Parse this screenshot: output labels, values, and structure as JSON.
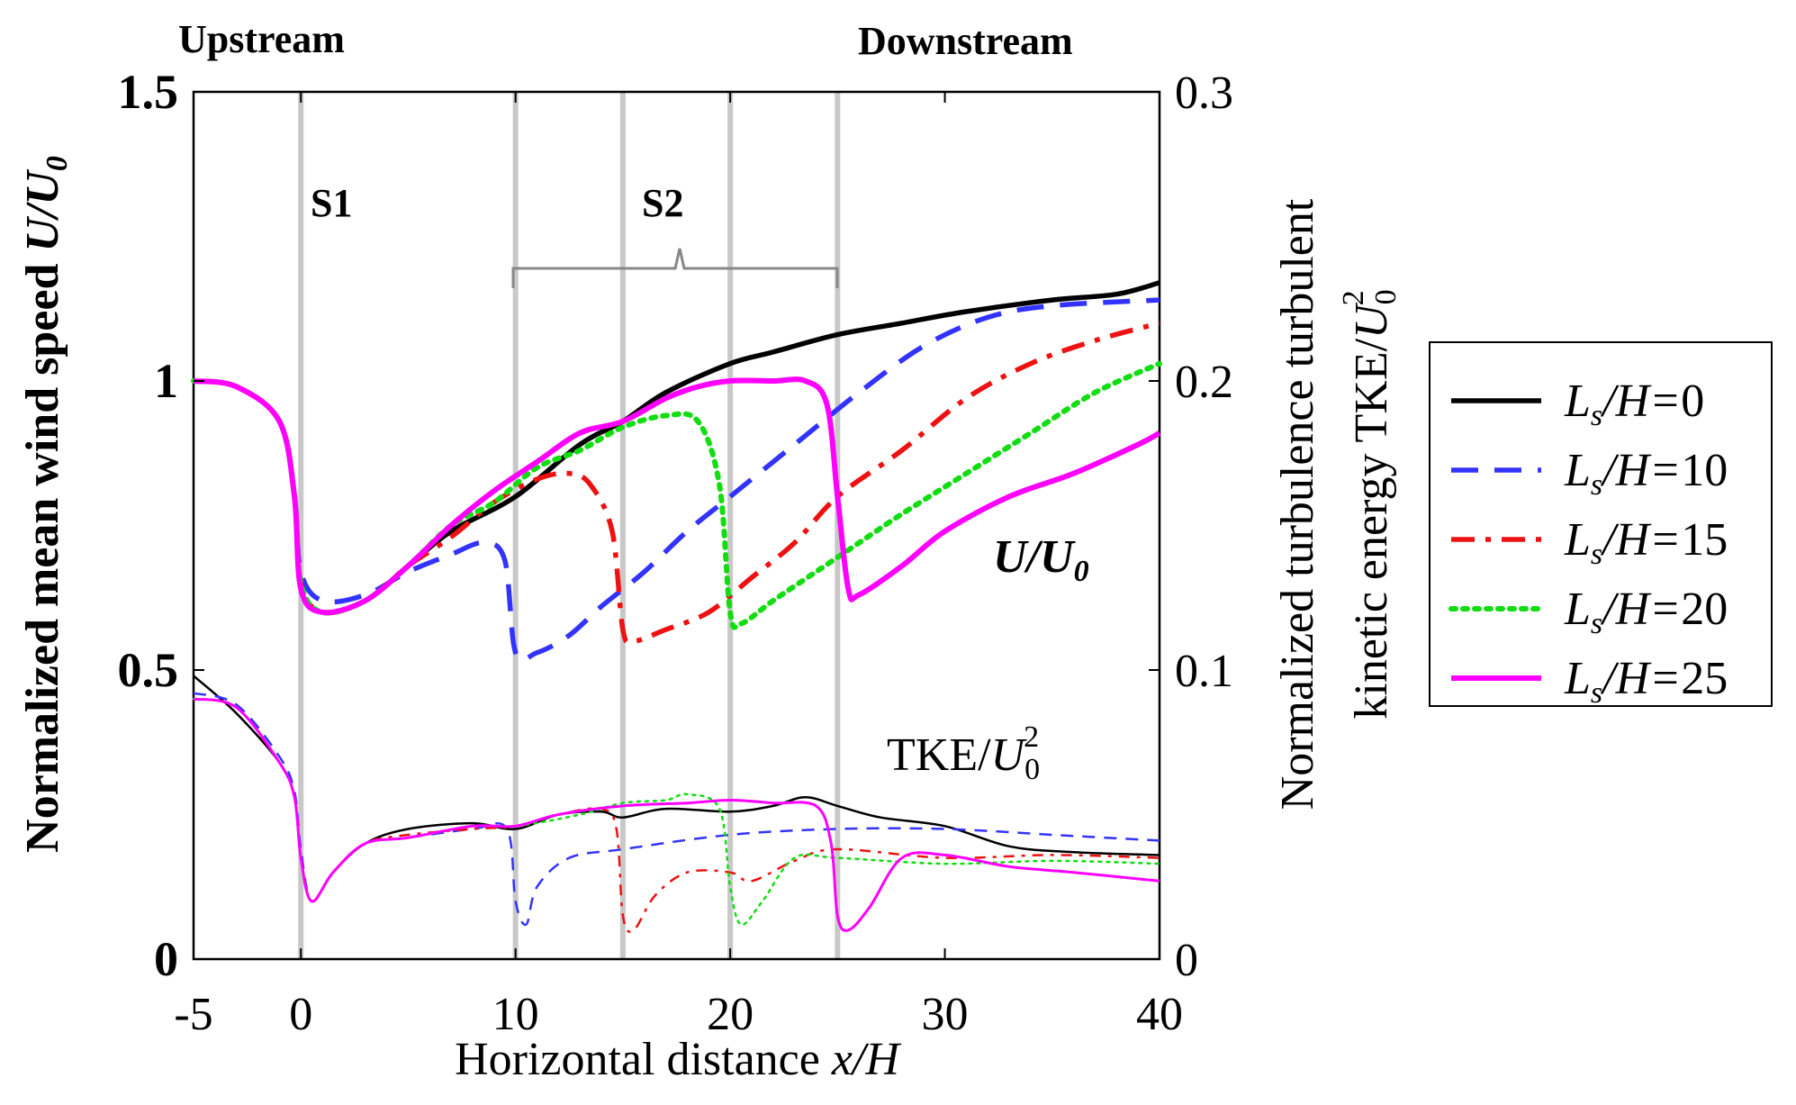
{
  "chart_data": {
    "type": "line",
    "x_range": [
      -5,
      40
    ],
    "left_axis_range": [
      0,
      1.5
    ],
    "right_axis_range": [
      0,
      0.3
    ],
    "x_ticks": [
      "-5",
      "0",
      "10",
      "20",
      "30",
      "40"
    ],
    "x_tick_values": [
      -5,
      0,
      10,
      20,
      30,
      40
    ],
    "left_ticks": [
      "0",
      "0.5",
      "1",
      "1.5"
    ],
    "left_tick_values": [
      0,
      0.5,
      1,
      1.5
    ],
    "right_ticks": [
      "0",
      "0.1",
      "0.2",
      "0.3"
    ],
    "right_tick_values": [
      0,
      0.1,
      0.2,
      0.3
    ],
    "xlabel_text": "Horizontal distance ",
    "xlabel_math": "x/H",
    "ylabel_left_text": "Normalized mean wind speed ",
    "ylabel_left_math": "U/U",
    "ylabel_left_sub": "0",
    "ylabel_right_line1": "Normalized turbulence turbulent",
    "ylabel_right_line2": "kinetic energy TKE/",
    "ylabel_right_math": "U",
    "ylabel_right_sub": "0",
    "ylabel_right_sup": "2",
    "region_left": "Upstream",
    "region_right": "Downstream",
    "section_labels": [
      "S1",
      "S2"
    ],
    "section_lines_x": [
      0,
      10,
      15,
      20,
      25
    ],
    "annotation_u_main": "U/U",
    "annotation_u_sub": "0",
    "annotation_tke_main": "TKE/",
    "annotation_tke_math": "U",
    "annotation_tke_sub": "0",
    "annotation_tke_sup": "2",
    "legend_prefix": "L",
    "legend_sub": "s",
    "legend_mid": "/H=",
    "series": [
      {
        "name": "Ls/H=0",
        "ls_value": "0",
        "color": "#000000",
        "style": "solid",
        "u": [
          [
            -5,
            1.0
          ],
          [
            -3,
            0.99
          ],
          [
            -1,
            0.93
          ],
          [
            -0.3,
            0.8
          ],
          [
            0,
            0.64
          ],
          [
            1,
            0.6
          ],
          [
            3,
            0.62
          ],
          [
            5,
            0.68
          ],
          [
            7,
            0.74
          ],
          [
            10,
            0.8
          ],
          [
            13,
            0.89
          ],
          [
            15,
            0.93
          ],
          [
            17,
            0.98
          ],
          [
            20,
            1.03
          ],
          [
            22,
            1.05
          ],
          [
            25,
            1.08
          ],
          [
            28,
            1.1
          ],
          [
            31,
            1.12
          ],
          [
            35,
            1.14
          ],
          [
            38,
            1.15
          ],
          [
            40,
            1.17
          ]
        ],
        "tke": [
          [
            -5,
            0.098
          ],
          [
            -3,
            0.085
          ],
          [
            -1,
            0.068
          ],
          [
            -0.3,
            0.056
          ],
          [
            0,
            0.035
          ],
          [
            0.5,
            0.02
          ],
          [
            1.5,
            0.03
          ],
          [
            3,
            0.04
          ],
          [
            5,
            0.045
          ],
          [
            8,
            0.047
          ],
          [
            10,
            0.045
          ],
          [
            12,
            0.05
          ],
          [
            14,
            0.051
          ],
          [
            15,
            0.049
          ],
          [
            17,
            0.052
          ],
          [
            20,
            0.051
          ],
          [
            22,
            0.053
          ],
          [
            23.5,
            0.056
          ],
          [
            25,
            0.053
          ],
          [
            27,
            0.049
          ],
          [
            30,
            0.046
          ],
          [
            33,
            0.039
          ],
          [
            36,
            0.037
          ],
          [
            40,
            0.036
          ]
        ]
      },
      {
        "name": "Ls/H=10",
        "ls_value": "10",
        "color": "#3333ff",
        "style": "dash",
        "u": [
          [
            -5,
            1.0
          ],
          [
            -3,
            0.99
          ],
          [
            -1,
            0.93
          ],
          [
            -0.3,
            0.8
          ],
          [
            0,
            0.67
          ],
          [
            1,
            0.62
          ],
          [
            3,
            0.63
          ],
          [
            5,
            0.67
          ],
          [
            7,
            0.7
          ],
          [
            8.5,
            0.72
          ],
          [
            9.5,
            0.69
          ],
          [
            10,
            0.53
          ],
          [
            11,
            0.53
          ],
          [
            12.5,
            0.56
          ],
          [
            14,
            0.61
          ],
          [
            16,
            0.67
          ],
          [
            18,
            0.74
          ],
          [
            20,
            0.8
          ],
          [
            23,
            0.89
          ],
          [
            26,
            0.98
          ],
          [
            29,
            1.06
          ],
          [
            32,
            1.11
          ],
          [
            35,
            1.13
          ],
          [
            40,
            1.14
          ]
        ],
        "tke": [
          [
            -5,
            0.092
          ],
          [
            -3,
            0.088
          ],
          [
            -1,
            0.07
          ],
          [
            -0.3,
            0.058
          ],
          [
            0,
            0.038
          ],
          [
            0.5,
            0.02
          ],
          [
            1.5,
            0.03
          ],
          [
            3,
            0.04
          ],
          [
            5,
            0.042
          ],
          [
            8,
            0.045
          ],
          [
            9.6,
            0.045
          ],
          [
            10,
            0.02
          ],
          [
            10.5,
            0.012
          ],
          [
            11,
            0.025
          ],
          [
            12.5,
            0.035
          ],
          [
            15,
            0.038
          ],
          [
            20,
            0.043
          ],
          [
            25,
            0.045
          ],
          [
            30,
            0.045
          ],
          [
            35,
            0.043
          ],
          [
            40,
            0.041
          ]
        ]
      },
      {
        "name": "Ls/H=15",
        "ls_value": "15",
        "color": "#ee1111",
        "style": "dashdot",
        "u": [
          [
            -5,
            1.0
          ],
          [
            -3,
            0.99
          ],
          [
            -1,
            0.93
          ],
          [
            -0.3,
            0.8
          ],
          [
            0,
            0.65
          ],
          [
            1,
            0.6
          ],
          [
            3,
            0.62
          ],
          [
            5,
            0.68
          ],
          [
            7,
            0.73
          ],
          [
            9,
            0.79
          ],
          [
            11,
            0.83
          ],
          [
            12.5,
            0.84
          ],
          [
            13.5,
            0.82
          ],
          [
            14.5,
            0.74
          ],
          [
            15,
            0.57
          ],
          [
            15.5,
            0.55
          ],
          [
            17,
            0.57
          ],
          [
            19,
            0.6
          ],
          [
            21,
            0.66
          ],
          [
            23,
            0.72
          ],
          [
            25,
            0.8
          ],
          [
            28,
            0.88
          ],
          [
            31,
            0.97
          ],
          [
            34,
            1.03
          ],
          [
            37,
            1.07
          ],
          [
            40,
            1.1
          ]
        ],
        "tke": [
          [
            -5,
            0.09
          ],
          [
            -3,
            0.087
          ],
          [
            -1,
            0.068
          ],
          [
            -0.3,
            0.056
          ],
          [
            0,
            0.035
          ],
          [
            0.5,
            0.02
          ],
          [
            1.5,
            0.03
          ],
          [
            3,
            0.04
          ],
          [
            5,
            0.043
          ],
          [
            8,
            0.045
          ],
          [
            10,
            0.046
          ],
          [
            12,
            0.05
          ],
          [
            14,
            0.052
          ],
          [
            14.7,
            0.045
          ],
          [
            15,
            0.015
          ],
          [
            15.5,
            0.01
          ],
          [
            16.5,
            0.022
          ],
          [
            18,
            0.03
          ],
          [
            20,
            0.03
          ],
          [
            21,
            0.027
          ],
          [
            23,
            0.034
          ],
          [
            25,
            0.038
          ],
          [
            30,
            0.035
          ],
          [
            35,
            0.036
          ],
          [
            40,
            0.035
          ]
        ]
      },
      {
        "name": "Ls/H=20",
        "ls_value": "20",
        "color": "#11dd11",
        "style": "dot",
        "u": [
          [
            -5,
            1.0
          ],
          [
            -3,
            0.99
          ],
          [
            -1,
            0.93
          ],
          [
            -0.3,
            0.8
          ],
          [
            0,
            0.65
          ],
          [
            1,
            0.6
          ],
          [
            3,
            0.62
          ],
          [
            5,
            0.68
          ],
          [
            7,
            0.75
          ],
          [
            9,
            0.79
          ],
          [
            11,
            0.85
          ],
          [
            13,
            0.88
          ],
          [
            15,
            0.92
          ],
          [
            17,
            0.94
          ],
          [
            18.5,
            0.93
          ],
          [
            19.5,
            0.82
          ],
          [
            20,
            0.6
          ],
          [
            20.5,
            0.58
          ],
          [
            22,
            0.62
          ],
          [
            24,
            0.67
          ],
          [
            26,
            0.72
          ],
          [
            28,
            0.77
          ],
          [
            31,
            0.84
          ],
          [
            34,
            0.91
          ],
          [
            37,
            0.98
          ],
          [
            40,
            1.03
          ]
        ],
        "tke": [
          [
            -5,
            0.09
          ],
          [
            -3,
            0.087
          ],
          [
            -1,
            0.068
          ],
          [
            -0.3,
            0.056
          ],
          [
            0,
            0.035
          ],
          [
            0.5,
            0.02
          ],
          [
            1.5,
            0.03
          ],
          [
            3,
            0.04
          ],
          [
            5,
            0.042
          ],
          [
            8,
            0.046
          ],
          [
            10,
            0.046
          ],
          [
            13,
            0.05
          ],
          [
            15,
            0.054
          ],
          [
            17,
            0.055
          ],
          [
            18,
            0.057
          ],
          [
            19.5,
            0.052
          ],
          [
            20,
            0.025
          ],
          [
            20.5,
            0.012
          ],
          [
            21.5,
            0.02
          ],
          [
            23,
            0.035
          ],
          [
            25,
            0.035
          ],
          [
            30,
            0.033
          ],
          [
            35,
            0.034
          ],
          [
            40,
            0.033
          ]
        ]
      },
      {
        "name": "Ls/H=25",
        "ls_value": "25",
        "color": "#ff00ff",
        "style": "solid-thick",
        "u": [
          [
            -5,
            1.0
          ],
          [
            -3,
            0.99
          ],
          [
            -1,
            0.93
          ],
          [
            -0.3,
            0.8
          ],
          [
            0,
            0.64
          ],
          [
            1,
            0.6
          ],
          [
            3,
            0.62
          ],
          [
            5,
            0.68
          ],
          [
            7,
            0.75
          ],
          [
            9,
            0.81
          ],
          [
            11,
            0.86
          ],
          [
            13,
            0.91
          ],
          [
            15,
            0.93
          ],
          [
            17,
            0.97
          ],
          [
            18.5,
            0.99
          ],
          [
            20,
            1.0
          ],
          [
            22,
            1.0
          ],
          [
            23.5,
            1.0
          ],
          [
            24.5,
            0.96
          ],
          [
            25,
            0.8
          ],
          [
            25.5,
            0.64
          ],
          [
            26,
            0.63
          ],
          [
            28,
            0.68
          ],
          [
            30,
            0.74
          ],
          [
            33,
            0.8
          ],
          [
            36,
            0.84
          ],
          [
            39,
            0.89
          ],
          [
            40,
            0.91
          ]
        ],
        "tke": [
          [
            -5,
            0.09
          ],
          [
            -3,
            0.087
          ],
          [
            -1,
            0.068
          ],
          [
            -0.3,
            0.056
          ],
          [
            0,
            0.035
          ],
          [
            0.5,
            0.02
          ],
          [
            1.5,
            0.03
          ],
          [
            3,
            0.04
          ],
          [
            5,
            0.042
          ],
          [
            8,
            0.046
          ],
          [
            10,
            0.046
          ],
          [
            12,
            0.05
          ],
          [
            15,
            0.053
          ],
          [
            18,
            0.054
          ],
          [
            20,
            0.055
          ],
          [
            22,
            0.054
          ],
          [
            24,
            0.053
          ],
          [
            24.7,
            0.04
          ],
          [
            25,
            0.015
          ],
          [
            25.5,
            0.01
          ],
          [
            26.5,
            0.018
          ],
          [
            28,
            0.035
          ],
          [
            30,
            0.036
          ],
          [
            33,
            0.032
          ],
          [
            36,
            0.03
          ],
          [
            40,
            0.027
          ]
        ]
      }
    ]
  }
}
